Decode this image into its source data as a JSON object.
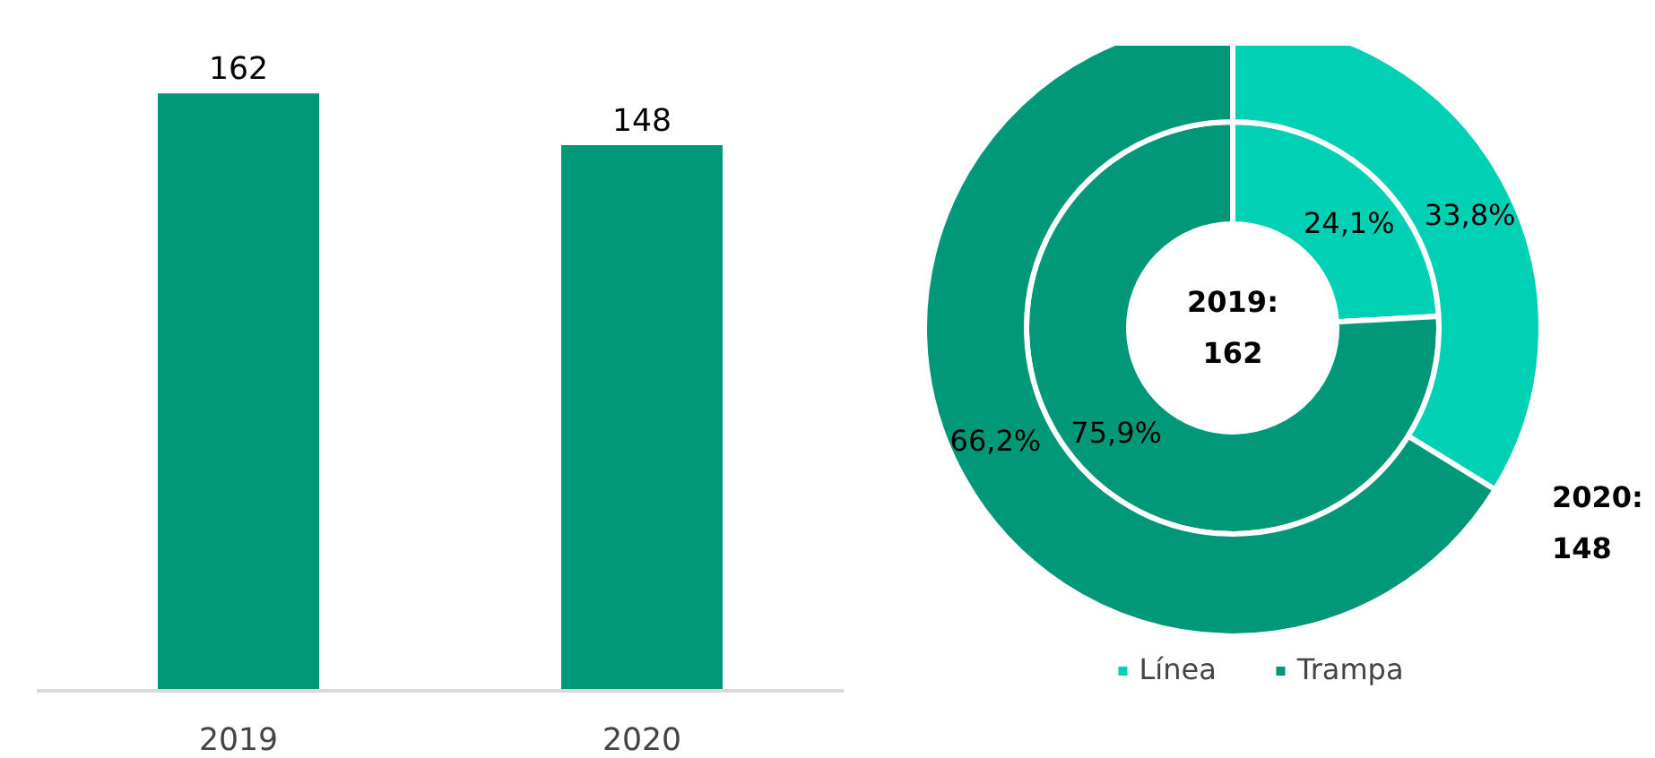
{
  "chart_data": [
    {
      "type": "bar",
      "categories": [
        "2019",
        "2020"
      ],
      "values": [
        162,
        148
      ],
      "color": "#009879",
      "tick_labels": "x",
      "data_labels": true,
      "grid": false
    },
    {
      "type": "donut",
      "categories": [
        "Línea",
        "Trampa"
      ],
      "colors": [
        "#00d1b5",
        "#009879"
      ],
      "series": [
        {
          "values": [
            24.1,
            75.9
          ],
          "value_labels": [
            "24,1%",
            "75,9%"
          ]
        },
        {
          "values": [
            33.8,
            66.2
          ],
          "value_labels": [
            "33,8%",
            "66,2%"
          ]
        }
      ],
      "annotations": [
        "2019: 162",
        "2020: 148"
      ],
      "legend": "bottom"
    }
  ]
}
